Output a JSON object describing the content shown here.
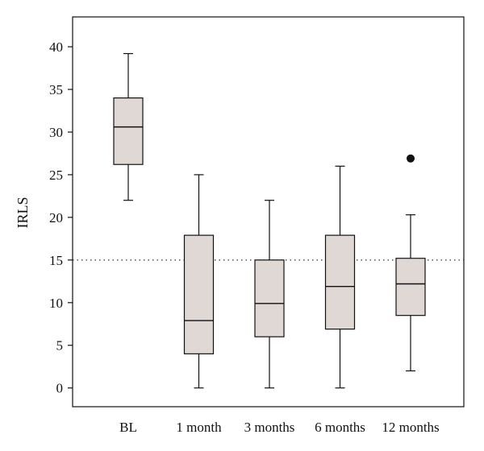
{
  "chart_data": {
    "type": "box",
    "title": "",
    "xlabel": "",
    "ylabel": "IRLS",
    "ylim": [
      -2.2,
      43.5
    ],
    "yticks": [
      0,
      5,
      10,
      15,
      20,
      25,
      30,
      35,
      40
    ],
    "ytick_labels": [
      "0",
      "5",
      "10",
      "15",
      "20",
      "25",
      "30",
      "35",
      "40"
    ],
    "reference_line": {
      "value": 15,
      "style": "dotted"
    },
    "categories": [
      "BL",
      "1 month",
      "3 months",
      "6 months",
      "12 months"
    ],
    "boxes": [
      {
        "label": "BL",
        "whisker_low": 22,
        "q1": 26.2,
        "median": 30.6,
        "q3": 34.0,
        "whisker_high": 39.2,
        "outliers": []
      },
      {
        "label": "1 month",
        "whisker_low": 0,
        "q1": 4.0,
        "median": 7.9,
        "q3": 17.9,
        "whisker_high": 25.0,
        "outliers": []
      },
      {
        "label": "3 months",
        "whisker_low": 0,
        "q1": 6.0,
        "median": 9.9,
        "q3": 15.0,
        "whisker_high": 22.0,
        "outliers": []
      },
      {
        "label": "6 months",
        "whisker_low": 0,
        "q1": 6.9,
        "median": 11.9,
        "q3": 17.9,
        "whisker_high": 26.0,
        "outliers": []
      },
      {
        "label": "12 months",
        "whisker_low": 2,
        "q1": 8.5,
        "median": 12.2,
        "q3": 15.2,
        "whisker_high": 20.3,
        "outliers": [
          26.9
        ]
      }
    ],
    "colors": {
      "box_fill": "#e0d8d5",
      "stroke": "#111111"
    }
  }
}
